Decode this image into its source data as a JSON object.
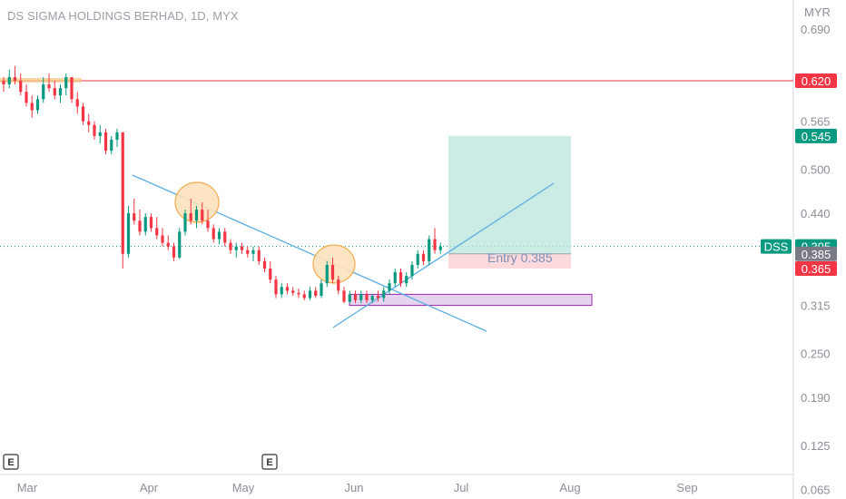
{
  "header": {
    "title": "DS SIGMA HOLDINGS BERHAD, 1D, MYX"
  },
  "chart_data": {
    "type": "candlestick",
    "symbol": "DSS",
    "currency": "MYR",
    "y_ticks": [
      "0.690",
      "0.565",
      "0.500",
      "0.440",
      "0.315",
      "0.250",
      "0.190",
      "0.125",
      "0.065"
    ],
    "x_ticks": [
      "Mar",
      "Apr",
      "May",
      "Jun",
      "Jul",
      "Aug",
      "Sep"
    ],
    "price_badges": [
      {
        "label": "0.620",
        "value": 0.62,
        "color": "#f23645"
      },
      {
        "label": "0.545",
        "value": 0.545,
        "color": "#089981"
      },
      {
        "label": "0.395",
        "value": 0.395,
        "color": "#089981"
      },
      {
        "label": "0.385",
        "value": 0.385,
        "color": "#787b86"
      },
      {
        "label": "0.365",
        "value": 0.365,
        "color": "#f23645"
      }
    ],
    "last_price_tag": "DSS",
    "last_price": 0.395,
    "resistance_line": 0.62,
    "position": {
      "entry_label": "Entry 0.385",
      "entry": 0.385,
      "target": 0.545,
      "stop": 0.365
    },
    "support_zone": {
      "top": 0.33,
      "bottom": 0.315
    },
    "earnings_markers": [
      "E",
      "E"
    ],
    "candles": [
      [
        0.62,
        0.625,
        0.605,
        0.615
      ],
      [
        0.615,
        0.635,
        0.61,
        0.625
      ],
      [
        0.625,
        0.64,
        0.615,
        0.62
      ],
      [
        0.62,
        0.63,
        0.6,
        0.605
      ],
      [
        0.605,
        0.615,
        0.585,
        0.59
      ],
      [
        0.59,
        0.6,
        0.57,
        0.58
      ],
      [
        0.58,
        0.6,
        0.575,
        0.595
      ],
      [
        0.595,
        0.625,
        0.59,
        0.615
      ],
      [
        0.615,
        0.63,
        0.605,
        0.61
      ],
      [
        0.61,
        0.62,
        0.595,
        0.6
      ],
      [
        0.6,
        0.615,
        0.59,
        0.61
      ],
      [
        0.61,
        0.63,
        0.6,
        0.625
      ],
      [
        0.625,
        0.625,
        0.59,
        0.595
      ],
      [
        0.595,
        0.605,
        0.575,
        0.585
      ],
      [
        0.585,
        0.59,
        0.56,
        0.565
      ],
      [
        0.565,
        0.575,
        0.55,
        0.56
      ],
      [
        0.56,
        0.565,
        0.54,
        0.545
      ],
      [
        0.545,
        0.56,
        0.535,
        0.55
      ],
      [
        0.55,
        0.555,
        0.52,
        0.525
      ],
      [
        0.525,
        0.545,
        0.52,
        0.54
      ],
      [
        0.54,
        0.555,
        0.53,
        0.55
      ],
      [
        0.55,
        0.55,
        0.365,
        0.385
      ],
      [
        0.385,
        0.45,
        0.38,
        0.44
      ],
      [
        0.44,
        0.46,
        0.425,
        0.43
      ],
      [
        0.43,
        0.445,
        0.41,
        0.415
      ],
      [
        0.415,
        0.44,
        0.41,
        0.435
      ],
      [
        0.435,
        0.44,
        0.415,
        0.42
      ],
      [
        0.42,
        0.435,
        0.405,
        0.41
      ],
      [
        0.41,
        0.42,
        0.395,
        0.4
      ],
      [
        0.4,
        0.41,
        0.39,
        0.395
      ],
      [
        0.395,
        0.4,
        0.375,
        0.38
      ],
      [
        0.38,
        0.42,
        0.378,
        0.415
      ],
      [
        0.415,
        0.445,
        0.41,
        0.44
      ],
      [
        0.44,
        0.46,
        0.425,
        0.43
      ],
      [
        0.43,
        0.45,
        0.42,
        0.445
      ],
      [
        0.445,
        0.455,
        0.425,
        0.43
      ],
      [
        0.43,
        0.445,
        0.415,
        0.42
      ],
      [
        0.42,
        0.425,
        0.4,
        0.405
      ],
      [
        0.405,
        0.42,
        0.398,
        0.415
      ],
      [
        0.415,
        0.42,
        0.395,
        0.4
      ],
      [
        0.4,
        0.405,
        0.385,
        0.39
      ],
      [
        0.39,
        0.4,
        0.38,
        0.395
      ],
      [
        0.395,
        0.4,
        0.385,
        0.39
      ],
      [
        0.39,
        0.395,
        0.38,
        0.385
      ],
      [
        0.385,
        0.395,
        0.375,
        0.39
      ],
      [
        0.39,
        0.395,
        0.37,
        0.375
      ],
      [
        0.375,
        0.38,
        0.36,
        0.365
      ],
      [
        0.365,
        0.375,
        0.345,
        0.35
      ],
      [
        0.35,
        0.355,
        0.325,
        0.33
      ],
      [
        0.33,
        0.345,
        0.325,
        0.34
      ],
      [
        0.34,
        0.345,
        0.33,
        0.335
      ],
      [
        0.335,
        0.34,
        0.328,
        0.332
      ],
      [
        0.332,
        0.338,
        0.325,
        0.33
      ],
      [
        0.33,
        0.335,
        0.322,
        0.325
      ],
      [
        0.325,
        0.34,
        0.322,
        0.335
      ],
      [
        0.335,
        0.34,
        0.325,
        0.328
      ],
      [
        0.328,
        0.35,
        0.325,
        0.345
      ],
      [
        0.345,
        0.375,
        0.34,
        0.37
      ],
      [
        0.37,
        0.38,
        0.345,
        0.35
      ],
      [
        0.35,
        0.355,
        0.33,
        0.335
      ],
      [
        0.335,
        0.34,
        0.318,
        0.32
      ],
      [
        0.32,
        0.335,
        0.318,
        0.33
      ],
      [
        0.33,
        0.335,
        0.318,
        0.322
      ],
      [
        0.322,
        0.335,
        0.318,
        0.33
      ],
      [
        0.33,
        0.335,
        0.318,
        0.322
      ],
      [
        0.322,
        0.33,
        0.318,
        0.328
      ],
      [
        0.328,
        0.335,
        0.32,
        0.325
      ],
      [
        0.325,
        0.34,
        0.32,
        0.335
      ],
      [
        0.335,
        0.35,
        0.33,
        0.345
      ],
      [
        0.345,
        0.365,
        0.34,
        0.36
      ],
      [
        0.36,
        0.365,
        0.34,
        0.345
      ],
      [
        0.345,
        0.36,
        0.34,
        0.355
      ],
      [
        0.355,
        0.375,
        0.35,
        0.37
      ],
      [
        0.37,
        0.39,
        0.365,
        0.385
      ],
      [
        0.385,
        0.39,
        0.37,
        0.375
      ],
      [
        0.375,
        0.41,
        0.37,
        0.405
      ],
      [
        0.405,
        0.42,
        0.385,
        0.39
      ],
      [
        0.39,
        0.4,
        0.385,
        0.395
      ]
    ]
  }
}
